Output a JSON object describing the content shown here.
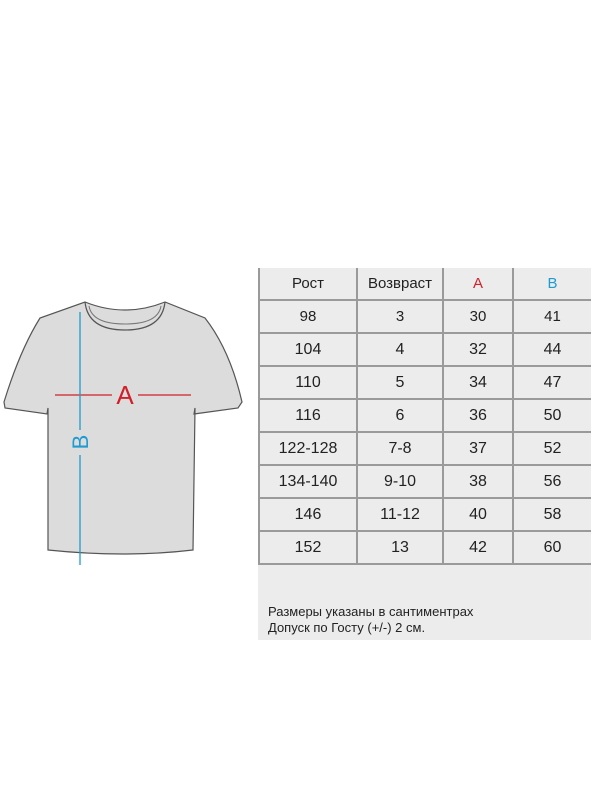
{
  "diagram": {
    "width_label": "A",
    "length_label": "B",
    "width_color": "#d0202a",
    "length_color": "#1e9bd0"
  },
  "table": {
    "headers": [
      "Рост",
      "Возвраст",
      "A",
      "B"
    ],
    "rows": [
      [
        "98",
        "3",
        "30",
        "41"
      ],
      [
        "104",
        "4",
        "32",
        "44"
      ],
      [
        "110",
        "5",
        "34",
        "47"
      ],
      [
        "116",
        "6",
        "36",
        "50"
      ],
      [
        "122-128",
        "7-8",
        "37",
        "52"
      ],
      [
        "134-140",
        "9-10",
        "38",
        "56"
      ],
      [
        "146",
        "11-12",
        "40",
        "58"
      ],
      [
        "152",
        "13",
        "42",
        "60"
      ]
    ]
  },
  "notes": [
    "Размеры указаны в сантиментрах",
    "Допуск по Госту (+/-) 2 см."
  ]
}
